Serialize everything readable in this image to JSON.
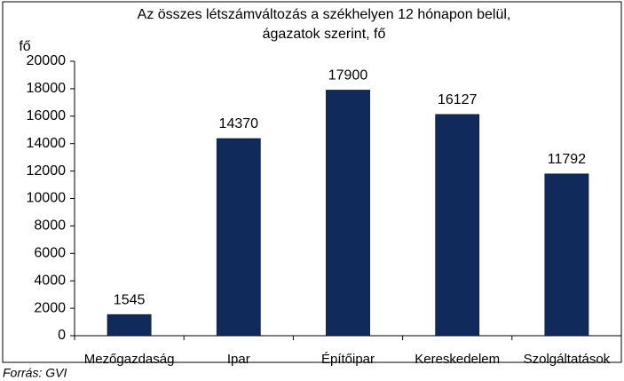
{
  "chart_data": {
    "type": "bar",
    "title": [
      "Az összes létszámváltozás a székhelyen 12 hónapon belül,",
      "ágazatok szerint, fő"
    ],
    "y_label": "fő",
    "source": "Forrás: GVI",
    "categories": [
      "Mezőgazdaság",
      "Ipar",
      "Építőipar",
      "Kereskedelem",
      "Szolgáltatások"
    ],
    "values": [
      1545,
      14370,
      17900,
      16127,
      11792
    ],
    "color": "#102a5c",
    "ylim": [
      0,
      20000
    ],
    "yticks": [
      0,
      2000,
      4000,
      6000,
      8000,
      10000,
      12000,
      14000,
      16000,
      18000,
      20000
    ],
    "grid": false
  }
}
